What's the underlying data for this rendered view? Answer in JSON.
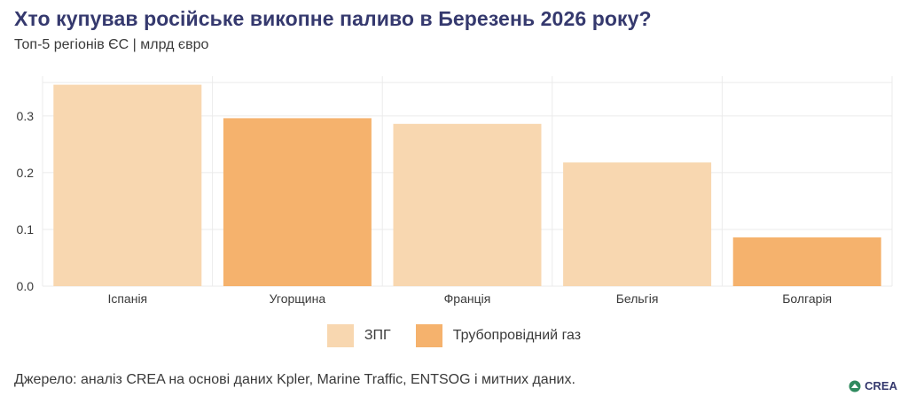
{
  "title": "Хто купував російське викопне паливо в Березень 2026 року?",
  "subtitle": "Топ-5 регіонів ЄС | млрд євро",
  "source": "Джерело: аналіз CREA на основі даних Kpler, Marine Traffic, ENTSOG і митних даних.",
  "logo_text": "CREA",
  "colors": {
    "lng": "#f8d7b0",
    "pipeline": "#f5b26d",
    "grid": "#ebebeb",
    "title": "#35396e",
    "text": "#3a3a3a"
  },
  "legend": [
    {
      "label": "ЗПГ",
      "color": "#f8d7b0"
    },
    {
      "label": "Трубопровідний газ",
      "color": "#f5b26d"
    }
  ],
  "chart_data": {
    "type": "bar",
    "categories": [
      "Іспанія",
      "Угорщина",
      "Франція",
      "Бельгія",
      "Болгарія"
    ],
    "values": [
      0.355,
      0.296,
      0.286,
      0.218,
      0.086
    ],
    "series_of_bar": [
      "ЗПГ",
      "Трубопровідний газ",
      "ЗПГ",
      "ЗПГ",
      "Трубопровідний газ"
    ],
    "yticks": [
      0.0,
      0.1,
      0.2,
      0.3
    ],
    "ylim": [
      0,
      0.37
    ],
    "grid": true,
    "legend_position": "bottom"
  }
}
